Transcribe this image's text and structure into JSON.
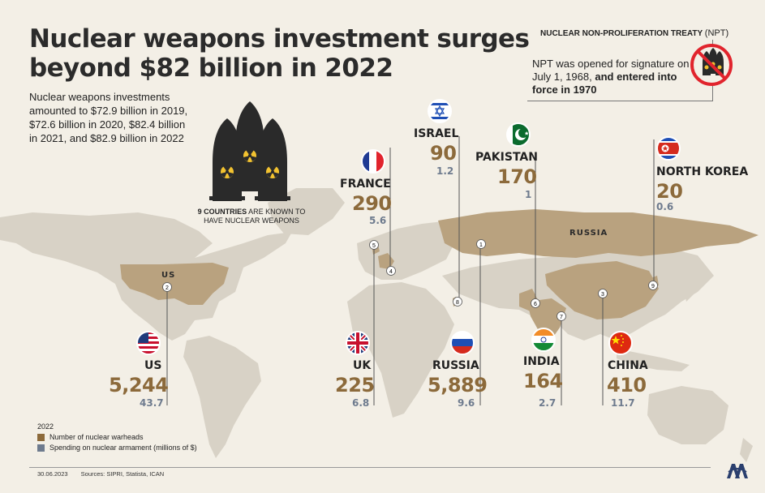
{
  "header": {
    "title_line1": "Nuclear weapons investment surges",
    "title_line2": "beyond $82 billion in 2022",
    "subtitle": "Nuclear weapons investments amounted to $72.9 billion in 2019, $72.6 billion in 2020, $82.4 billion in 2021, and $82.9 billion in 2022"
  },
  "npt": {
    "heading": "NUCLEAR NON-PROLIFERATION TREATY",
    "heading_abbr": "(NPT)",
    "text_plain": "NPT was opened for signature on July 1, 1968,",
    "text_bold": "and entered into force in 1970"
  },
  "missiles": {
    "caption_bold": "9 COUNTRIES",
    "caption_rest": "ARE KNOWN TO HAVE NUCLEAR WEAPONS"
  },
  "map_labels": {
    "us": "US",
    "russia": "RUSSIA"
  },
  "colors": {
    "warheads": "#8c6a3b",
    "spending": "#6e7b8e",
    "map_land": "#d8d2c6",
    "map_highlight": "#b9a27f"
  },
  "chart_data": {
    "type": "table",
    "year": "2022",
    "series": [
      {
        "name": "Number of nuclear warheads"
      },
      {
        "name": "Spending on nuclear armament (millions of $)"
      }
    ],
    "rows": [
      {
        "marker": "1",
        "country": "RUSSIA",
        "warheads": "5,889",
        "spending": "9.6"
      },
      {
        "marker": "2",
        "country": "US",
        "warheads": "5,244",
        "spending": "43.7"
      },
      {
        "marker": "3",
        "country": "CHINA",
        "warheads": "410",
        "spending": "11.7"
      },
      {
        "marker": "4",
        "country": "FRANCE",
        "warheads": "290",
        "spending": "5.6"
      },
      {
        "marker": "5",
        "country": "UK",
        "warheads": "225",
        "spending": "6.8"
      },
      {
        "marker": "6",
        "country": "PAKISTAN",
        "warheads": "170",
        "spending": "1"
      },
      {
        "marker": "7",
        "country": "INDIA",
        "warheads": "164",
        "spending": "2.7"
      },
      {
        "marker": "8",
        "country": "ISRAEL",
        "warheads": "90",
        "spending": "1.2"
      },
      {
        "marker": "9",
        "country": "NORTH KOREA",
        "warheads": "20",
        "spending": "0.6"
      }
    ]
  },
  "legend": {
    "year": "2022",
    "warheads_label": "Number of nuclear warheads",
    "spending_label": "Spending on nuclear armament (millions of $)"
  },
  "footer": {
    "date": "30.06.2023",
    "sources": "Sources: SIPRI, Statista, ICAN"
  }
}
